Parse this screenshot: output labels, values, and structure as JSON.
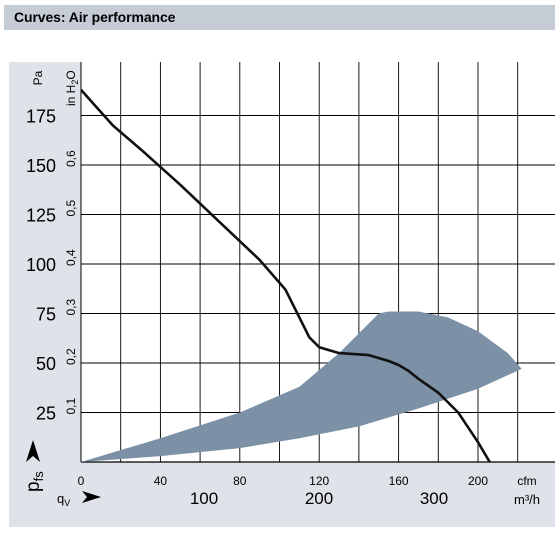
{
  "header": {
    "title": "Curves: Air performance"
  },
  "chart_data": {
    "type": "line",
    "x_axis_primary": {
      "unit": "cfm",
      "ticks": [
        0,
        40,
        80,
        120,
        160,
        200
      ],
      "range": [
        0,
        230
      ]
    },
    "x_axis_secondary": {
      "label": "q",
      "label_sub": "V",
      "unit": "m³/h",
      "ticks": [
        100,
        200,
        300
      ]
    },
    "y_axis_primary": {
      "label": "p",
      "label_sub": "fs",
      "unit": "Pa",
      "ticks": [
        25,
        50,
        75,
        100,
        125,
        150,
        175
      ],
      "range": [
        0,
        200
      ]
    },
    "y_axis_secondary": {
      "unit": "in H",
      "unit_sub": "2",
      "unit_tail": "O",
      "ticks": [
        "0,1",
        "0,2",
        "0,3",
        "0,4",
        "0,5",
        "0,6"
      ],
      "tick_values_pa": [
        25,
        50,
        75,
        100,
        125,
        150
      ]
    },
    "series": [
      {
        "x": [
          0,
          8,
          16,
          30,
          50,
          70,
          90,
          103,
          110,
          115,
          120,
          130,
          145,
          155,
          160,
          165,
          170,
          180,
          190,
          200,
          210
        ],
        "y": [
          188,
          179,
          170,
          158,
          140,
          121,
          102,
          87,
          73,
          63,
          58,
          55,
          54,
          51,
          49,
          46,
          42,
          35,
          25,
          10,
          -7
        ]
      }
    ],
    "shaded_region": {
      "color": "#7c90a6",
      "upper": {
        "x": [
          0,
          40,
          80,
          110,
          130,
          150,
          155,
          170,
          185,
          200,
          215,
          222
        ],
        "y": [
          0,
          12,
          25,
          38,
          55,
          75,
          76,
          76,
          73,
          66,
          55,
          47
        ]
      },
      "lower": {
        "x": [
          222,
          200,
          170,
          140,
          110,
          80,
          40,
          0
        ],
        "y": [
          47,
          37,
          27,
          18,
          12,
          7,
          3,
          0
        ]
      }
    },
    "grid": true
  }
}
